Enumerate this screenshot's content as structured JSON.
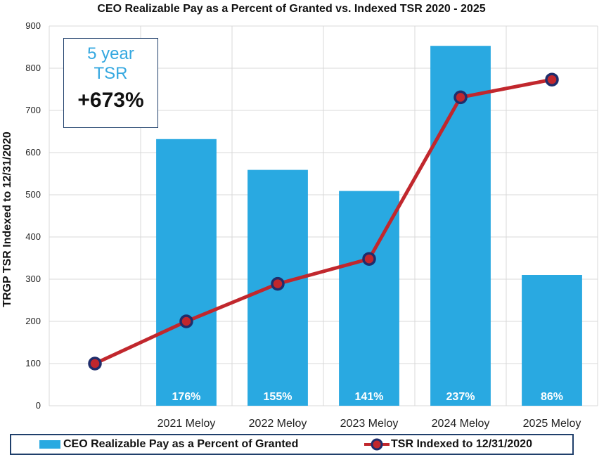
{
  "chart_data": {
    "type": "bar",
    "title": "CEO Realizable Pay as a Percent of Granted vs. Indexed TSR 2020 - 2025",
    "ylabel": "TRGP TSR Indexed to 12/31/2020",
    "xlabel": "",
    "ylim": [
      0,
      900
    ],
    "yticks": [
      0,
      100,
      200,
      300,
      400,
      500,
      600,
      700,
      800,
      900
    ],
    "categories": [
      "",
      "2021 Meloy",
      "2022 Meloy",
      "2023 Meloy",
      "2024 Meloy",
      "2025 Meloy"
    ],
    "grid": true,
    "legend_placement": "bottom",
    "series": [
      {
        "name": "CEO Realizable Pay as a Percent of Granted",
        "kind": "bar",
        "color": "#29a9e1",
        "values": [
          null,
          632,
          559,
          509,
          853,
          310
        ],
        "labels": [
          "",
          "176%",
          "155%",
          "141%",
          "237%",
          "86%"
        ]
      },
      {
        "name": "TSR Indexed to 12/31/2020",
        "kind": "line",
        "color": "#c1272d",
        "marker_edge": "#1f2d6b",
        "values": [
          100,
          200,
          289,
          348,
          731,
          773
        ]
      }
    ]
  },
  "callout": {
    "line1": "5 year",
    "line2": "TSR",
    "value": "+673%"
  }
}
